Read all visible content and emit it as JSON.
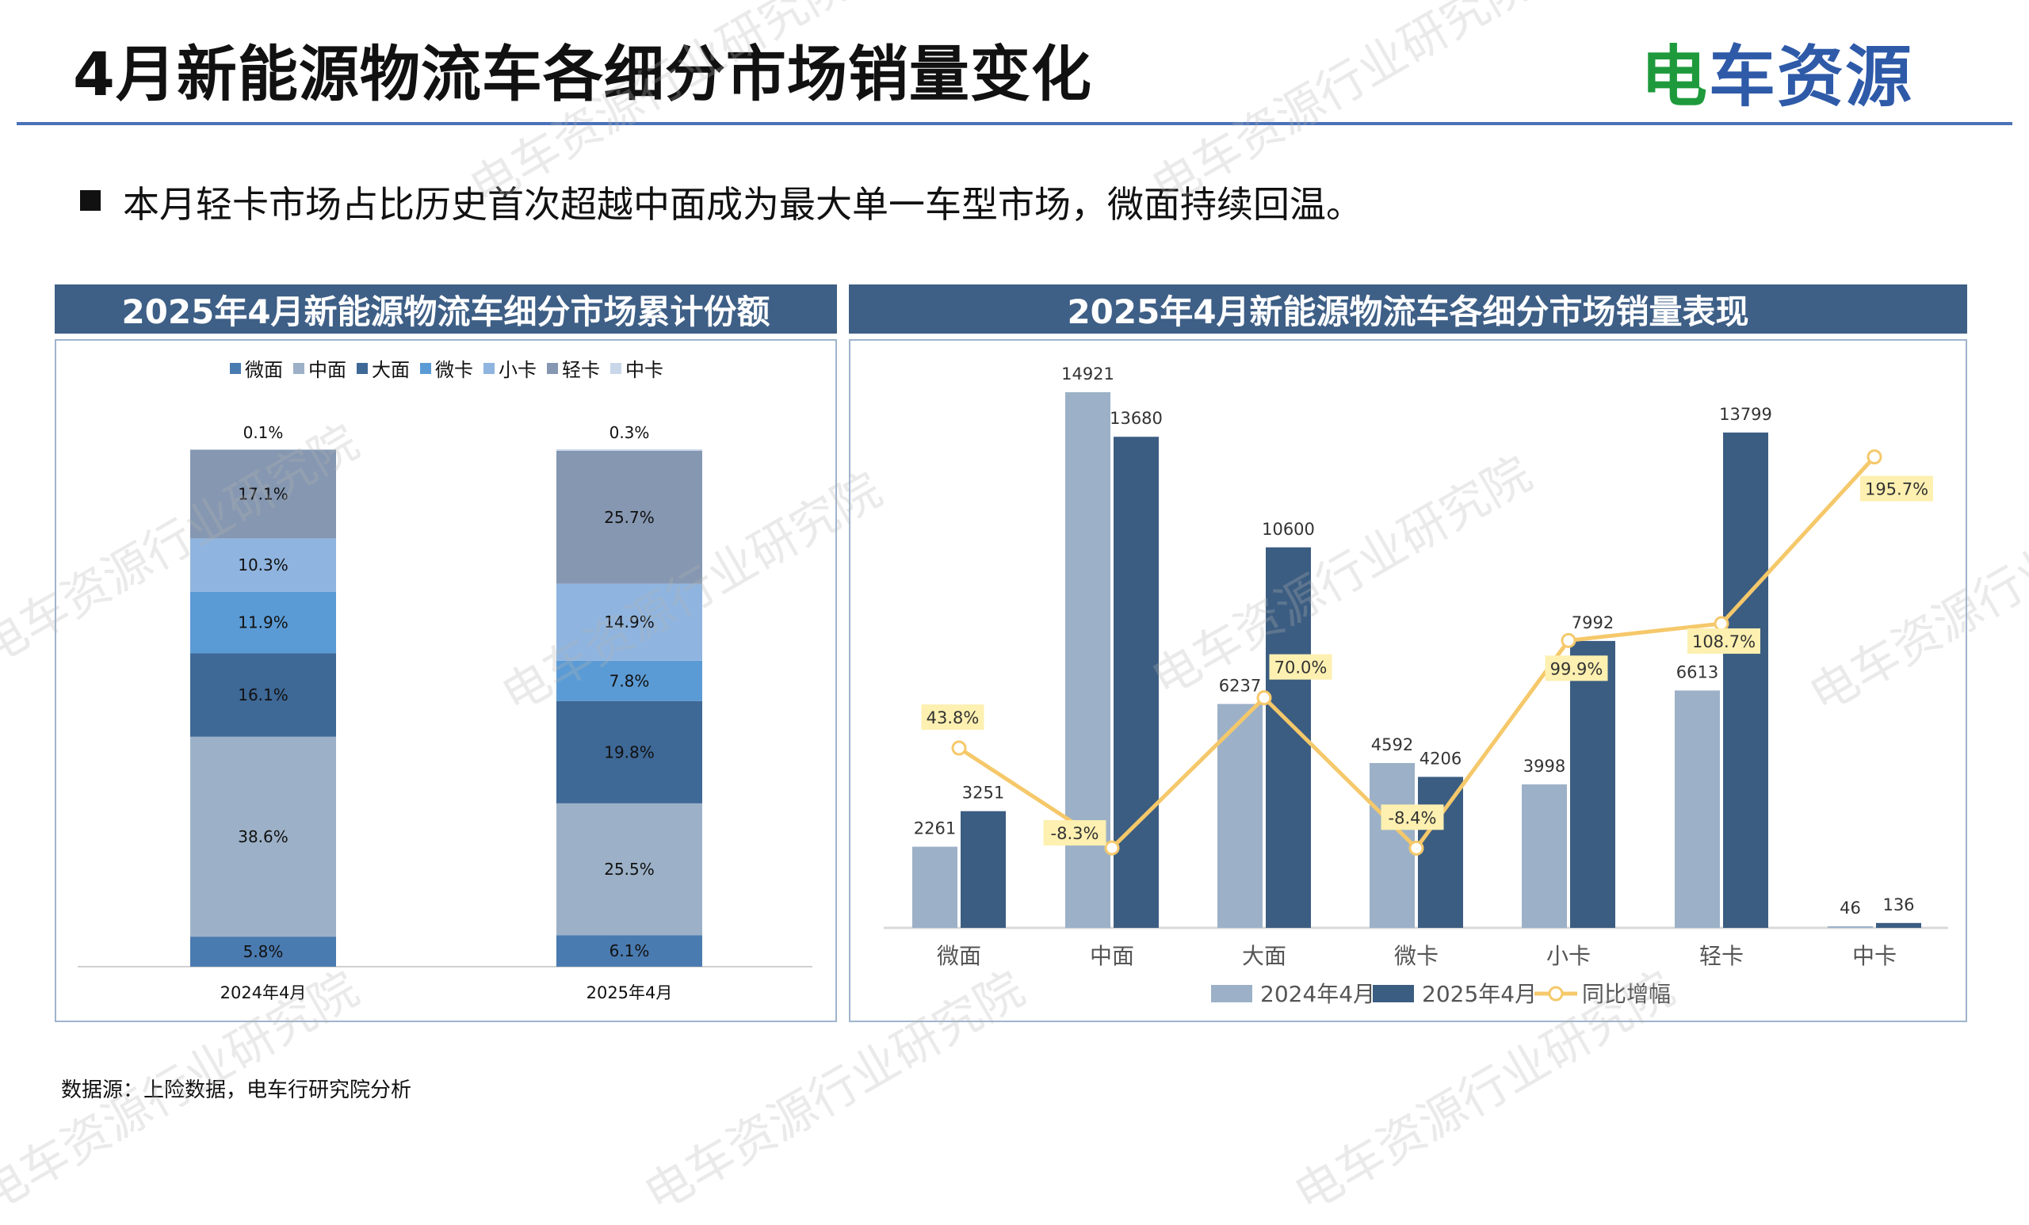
{
  "header": {
    "title": "4月新能源物流车各细分市场销量变化",
    "logo_text": "电车资源"
  },
  "bullet": "本月轻卡市场占比历史首次超越中面成为最大单一车型市场，微面持续回温。",
  "source": "数据源：上险数据，电车行研究院分析",
  "watermark": "电车资源行业研究院",
  "chart_data": [
    {
      "type": "bar",
      "stacked": true,
      "title": "2025年4月新能源物流车细分市场累计份额",
      "categories": [
        "2024年4月",
        "2025年4月"
      ],
      "unit": "%",
      "legend_position": "top",
      "series": [
        {
          "name": "微面",
          "color": "#4a7bb0",
          "values": [
            5.8,
            6.1
          ]
        },
        {
          "name": "中面",
          "color": "#9cb1c7",
          "values": [
            38.6,
            25.5
          ]
        },
        {
          "name": "大面",
          "color": "#3e6896",
          "values": [
            16.1,
            19.8
          ]
        },
        {
          "name": "微卡",
          "color": "#5b9bd5",
          "values": [
            11.9,
            7.8
          ]
        },
        {
          "name": "小卡",
          "color": "#8fb4df",
          "values": [
            10.3,
            14.9
          ]
        },
        {
          "name": "轻卡",
          "color": "#8597b1",
          "values": [
            17.1,
            25.7
          ]
        },
        {
          "name": "中卡",
          "color": "#c9d7e9",
          "values": [
            0.1,
            0.3
          ]
        }
      ]
    },
    {
      "type": "bar",
      "title": "2025年4月新能源物流车各细分市场销量表现",
      "categories": [
        "微面",
        "中面",
        "大面",
        "微卡",
        "小卡",
        "轻卡",
        "中卡"
      ],
      "legend_position": "bottom",
      "series": [
        {
          "name": "2024年4月",
          "type": "bar",
          "color": "#9cb1c7",
          "values": [
            2261,
            14921,
            6237,
            4592,
            3998,
            6613,
            46
          ]
        },
        {
          "name": "2025年4月",
          "type": "bar",
          "color": "#3c5d82",
          "values": [
            3251,
            13680,
            10600,
            4206,
            7992,
            13799,
            136
          ]
        },
        {
          "name": "同比增幅",
          "type": "line",
          "axis": "secondary",
          "color": "#f5c86a",
          "values": [
            43.8,
            -8.3,
            70.0,
            -8.4,
            99.9,
            108.7,
            195.7
          ],
          "labels": [
            "43.8%",
            "-8.3%",
            "70.0%",
            "-8.4%",
            "99.9%",
            "108.7%",
            "195.7%"
          ]
        }
      ]
    }
  ]
}
